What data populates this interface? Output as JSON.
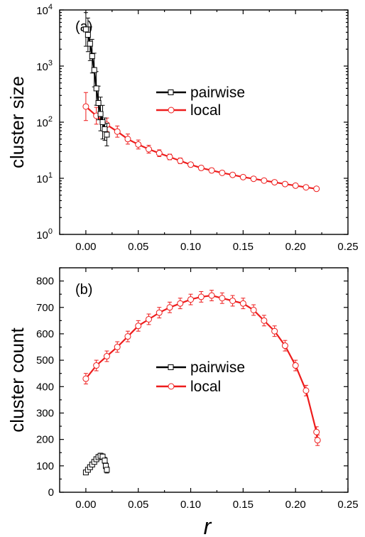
{
  "chart_data": [
    {
      "panel_label": "(a)",
      "type": "line",
      "ylabel": "cluster size",
      "xlabel": "",
      "y_scale": "log",
      "xlim": [
        -0.025,
        0.25
      ],
      "ylim": [
        1,
        10000
      ],
      "x_ticks": [
        "0.00",
        "0.05",
        "0.10",
        "0.15",
        "0.20",
        "0.25"
      ],
      "x_tick_values": [
        0,
        0.05,
        0.1,
        0.15,
        0.2,
        0.25
      ],
      "y_ticks": [
        1,
        10,
        100,
        1000,
        10000
      ],
      "y_tick_exponents": [
        "0",
        "1",
        "2",
        "3",
        "4"
      ],
      "legend_placement": "center-right",
      "series": [
        {
          "name": "pairwise",
          "color": "#000000",
          "marker": "square",
          "x": [
            0.0,
            0.002,
            0.004,
            0.006,
            0.008,
            0.01,
            0.012,
            0.014,
            0.016,
            0.018,
            0.02
          ],
          "values": [
            4500,
            3600,
            2500,
            1500,
            850,
            400,
            220,
            140,
            100,
            75,
            60
          ],
          "err": [
            0.3,
            0.3,
            0.3,
            0.3,
            0.3,
            0.3,
            0.3,
            0.3,
            0.3,
            0.2,
            0.2
          ]
        },
        {
          "name": "local",
          "color": "#ee1c1c",
          "marker": "circle",
          "x": [
            0.0,
            0.01,
            0.02,
            0.03,
            0.04,
            0.05,
            0.06,
            0.07,
            0.08,
            0.09,
            0.1,
            0.11,
            0.12,
            0.13,
            0.14,
            0.15,
            0.16,
            0.17,
            0.18,
            0.19,
            0.2,
            0.21,
            0.22
          ],
          "values": [
            190,
            130,
            90,
            68,
            50,
            40,
            33,
            28,
            24,
            20.5,
            17.5,
            15.3,
            13.8,
            12.5,
            11.5,
            10.5,
            9.8,
            9.1,
            8.5,
            7.9,
            7.4,
            6.9,
            6.5
          ],
          "err": [
            0.25,
            0.15,
            0.12,
            0.1,
            0.09,
            0.08,
            0.07,
            0.06,
            0.05,
            0.05,
            0.04,
            0.04,
            0.04,
            0.03,
            0.03,
            0.03,
            0.03,
            0.03,
            0.03,
            0.03,
            0.03,
            0.03,
            0.03
          ]
        }
      ]
    },
    {
      "panel_label": "(b)",
      "type": "line",
      "ylabel": "cluster count",
      "xlabel": "r",
      "y_scale": "linear",
      "xlim": [
        -0.025,
        0.25
      ],
      "ylim": [
        0,
        850
      ],
      "x_ticks": [
        "0.00",
        "0.05",
        "0.10",
        "0.15",
        "0.20",
        "0.25"
      ],
      "x_tick_values": [
        0,
        0.05,
        0.1,
        0.15,
        0.2,
        0.25
      ],
      "y_ticks": [
        "0",
        "100",
        "200",
        "300",
        "400",
        "500",
        "600",
        "700",
        "800"
      ],
      "y_tick_values": [
        0,
        100,
        200,
        300,
        400,
        500,
        600,
        700,
        800
      ],
      "legend_placement": "center",
      "series": [
        {
          "name": "pairwise",
          "color": "#000000",
          "marker": "square",
          "x": [
            0.0,
            0.002,
            0.004,
            0.006,
            0.008,
            0.01,
            0.012,
            0.014,
            0.016,
            0.018,
            0.019,
            0.02
          ],
          "values": [
            75,
            85,
            95,
            105,
            115,
            125,
            133,
            138,
            135,
            120,
            100,
            85
          ],
          "err": [
            8,
            8,
            8,
            8,
            8,
            8,
            10,
            10,
            10,
            12,
            12,
            12
          ]
        },
        {
          "name": "local",
          "color": "#ee1c1c",
          "marker": "circle",
          "x": [
            0.0,
            0.01,
            0.02,
            0.03,
            0.04,
            0.05,
            0.06,
            0.07,
            0.08,
            0.09,
            0.1,
            0.11,
            0.12,
            0.13,
            0.14,
            0.15,
            0.16,
            0.17,
            0.18,
            0.19,
            0.2,
            0.21,
            0.22,
            0.221
          ],
          "values": [
            430,
            480,
            515,
            550,
            590,
            630,
            655,
            680,
            700,
            715,
            730,
            740,
            745,
            735,
            725,
            715,
            690,
            650,
            610,
            555,
            480,
            385,
            228,
            197
          ],
          "err": [
            20,
            20,
            20,
            20,
            20,
            20,
            20,
            20,
            20,
            20,
            20,
            20,
            20,
            20,
            20,
            20,
            20,
            20,
            20,
            20,
            20,
            20,
            20,
            20
          ]
        }
      ]
    }
  ]
}
